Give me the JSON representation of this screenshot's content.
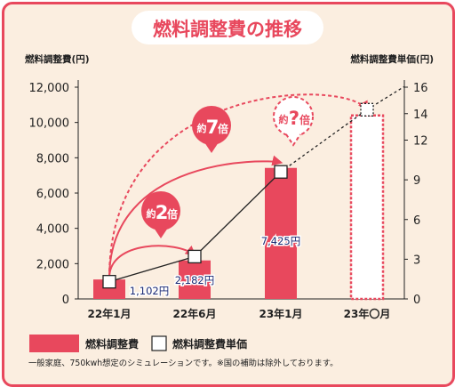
{
  "chart_data": {
    "type": "bar",
    "title": "燃料調整費の推移",
    "ylabel": "燃料調整費(円)",
    "y2label": "燃料調整費単価(円)",
    "categories": [
      "22年1月",
      "22年6月",
      "23年1月",
      "23年〇月"
    ],
    "ylim": [
      0,
      12000
    ],
    "yticks": [
      0,
      2000,
      4000,
      6000,
      8000,
      10000,
      12000
    ],
    "ytick_labels": [
      "0",
      "2,000",
      "4,000",
      "6,000",
      "8,000",
      "10,000",
      "12,000"
    ],
    "y2lim": [
      0,
      16
    ],
    "y2ticks": [
      0,
      3,
      6,
      9,
      12,
      14,
      16
    ],
    "series": [
      {
        "name": "燃料調整費",
        "values": [
          1102,
          2182,
          7425,
          10400
        ],
        "value_labels": [
          "1,102円",
          "2,182円",
          "7,425円",
          ""
        ],
        "estimated_last": true,
        "color": "#e8485d"
      },
      {
        "name": "燃料調整費単価",
        "values": [
          1.3,
          3.2,
          9.6,
          14.3
        ],
        "estimated_last": true,
        "color": "#ffffff"
      }
    ],
    "annotations": [
      {
        "label": "約",
        "value": "2",
        "suffix": "倍",
        "from": 0,
        "to": 1,
        "dashed": false
      },
      {
        "label": "約",
        "value": "7",
        "suffix": "倍",
        "from": 0,
        "to": 2,
        "dashed": false
      },
      {
        "label": "約",
        "value": "?",
        "suffix": "倍",
        "from": 0,
        "to": 3,
        "dashed": true
      }
    ],
    "legend": [
      "燃料調整費",
      "燃料調整費単価"
    ],
    "legend_position": "bottom-left",
    "grid": false
  },
  "footnote": "一般家庭、750kwh想定のシミュレーションです。※国の補助は除外しております。",
  "colors": {
    "accent": "#e8485d",
    "background": "#fbeee0",
    "text": "#222222",
    "dark_red": "#c8102e"
  }
}
